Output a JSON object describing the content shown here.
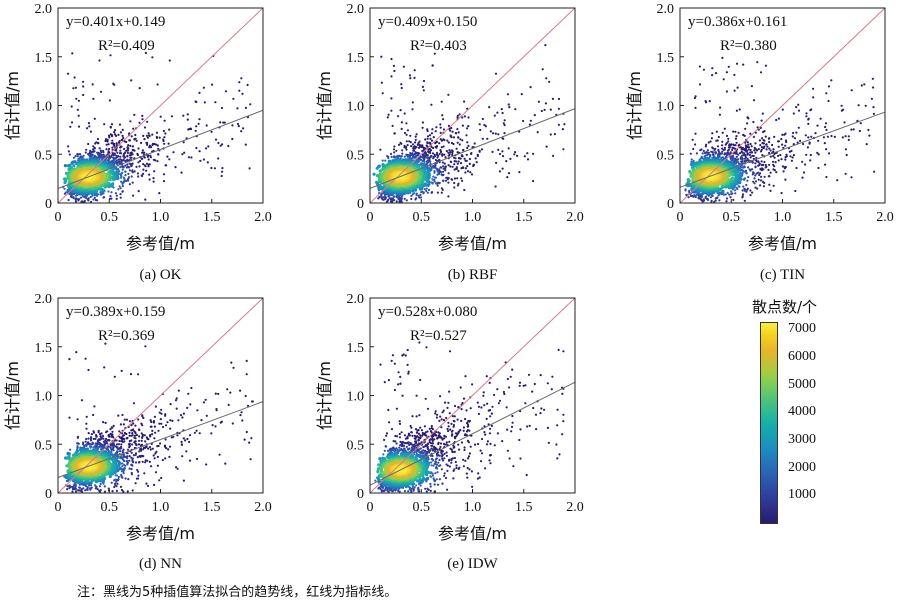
{
  "chart_data": [
    {
      "type": "scatter",
      "caption": "(a) OK",
      "equation": "y=0.401x+0.149",
      "r2": "R²=0.409",
      "fit": {
        "slope": 0.401,
        "intercept": 0.149
      },
      "xlabel": "参考值/m",
      "ylabel": "估计值/m",
      "xlim": [
        0,
        2.0
      ],
      "ylim": [
        0,
        2.0
      ],
      "xticks": [
        "0",
        "0.5",
        "1.0",
        "1.5",
        "2.0"
      ],
      "yticks": [
        "0",
        "0.5",
        "1.0",
        "1.5",
        "2.0"
      ]
    },
    {
      "type": "scatter",
      "caption": "(b) RBF",
      "equation": "y=0.409x+0.150",
      "r2": "R²=0.403",
      "fit": {
        "slope": 0.409,
        "intercept": 0.15
      },
      "xlabel": "参考值/m",
      "ylabel": "估计值/m",
      "xlim": [
        0,
        2.0
      ],
      "ylim": [
        0,
        2.0
      ],
      "xticks": [
        "0",
        "0.5",
        "1.0",
        "1.5",
        "2.0"
      ],
      "yticks": [
        "0",
        "0.5",
        "1.0",
        "1.5",
        "2.0"
      ]
    },
    {
      "type": "scatter",
      "caption": "(c) TIN",
      "equation": "y=0.386x+0.161",
      "r2": "R²=0.380",
      "fit": {
        "slope": 0.386,
        "intercept": 0.161
      },
      "xlabel": "参考值/m",
      "ylabel": "估计值/m",
      "xlim": [
        0,
        2.0
      ],
      "ylim": [
        0,
        2.0
      ],
      "xticks": [
        "0",
        "0.5",
        "1.0",
        "1.5",
        "2.0"
      ],
      "yticks": [
        "0",
        "0.5",
        "1.0",
        "1.5",
        "2.0"
      ]
    },
    {
      "type": "scatter",
      "caption": "(d) NN",
      "equation": "y=0.389x+0.159",
      "r2": "R²=0.369",
      "fit": {
        "slope": 0.389,
        "intercept": 0.159
      },
      "xlabel": "参考值/m",
      "ylabel": "估计值/m",
      "xlim": [
        0,
        2.0
      ],
      "ylim": [
        0,
        2.0
      ],
      "xticks": [
        "0",
        "0.5",
        "1.0",
        "1.5",
        "2.0"
      ],
      "yticks": [
        "0",
        "0.5",
        "1.0",
        "1.5",
        "2.0"
      ]
    },
    {
      "type": "scatter",
      "caption": "(e) IDW",
      "equation": "y=0.528x+0.080",
      "r2": "R²=0.527",
      "fit": {
        "slope": 0.528,
        "intercept": 0.08
      },
      "xlabel": "参考值/m",
      "ylabel": "估计值/m",
      "xlim": [
        0,
        2.0
      ],
      "ylim": [
        0,
        2.0
      ],
      "xticks": [
        "0",
        "0.5",
        "1.0",
        "1.5",
        "2.0"
      ],
      "yticks": [
        "0",
        "0.5",
        "1.0",
        "1.5",
        "2.0"
      ]
    }
  ],
  "colorbar": {
    "title": "散点数/个",
    "ticks": [
      "1000",
      "2000",
      "3000",
      "4000",
      "5000",
      "6000",
      "7000"
    ],
    "values": [
      1000,
      2000,
      3000,
      4000,
      5000,
      6000,
      7000
    ],
    "range": [
      0,
      7300
    ]
  },
  "colors": {
    "trend_line": "#6a6a6a",
    "reference_line": "#d77a8a",
    "points_low": "#2b1a6e",
    "points_high": "#f9f03a"
  },
  "note": "注：黑线为5种插值算法拟合的趋势线，红线为指标线。"
}
